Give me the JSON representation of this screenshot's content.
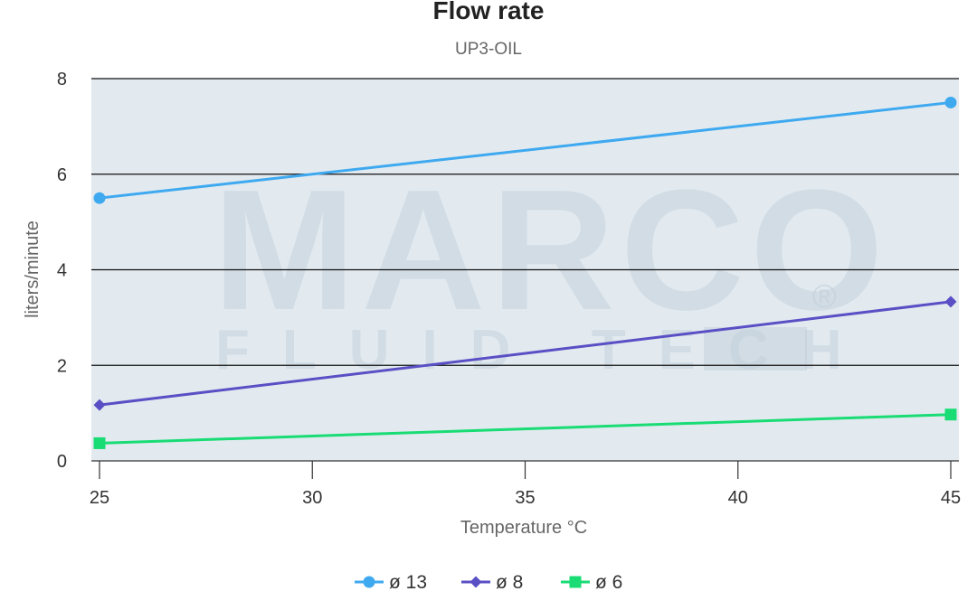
{
  "chart_data": {
    "type": "line",
    "title": "Flow rate",
    "subtitle": "UP3-OIL",
    "xlabel": "Temperature °C",
    "ylabel": "liters/minute",
    "xlim": [
      25,
      45
    ],
    "ylim": [
      0,
      8
    ],
    "x_ticks": [
      "25",
      "30",
      "35",
      "40",
      "45"
    ],
    "y_ticks": [
      "0",
      "2",
      "4",
      "6",
      "8"
    ],
    "grid": true,
    "legend_position": "bottom-center",
    "series": [
      {
        "name": "ø 13",
        "color": "#3fa9f0",
        "marker": "circle",
        "points": [
          [
            25,
            5.5
          ],
          [
            45,
            7.5
          ]
        ]
      },
      {
        "name": "ø 8",
        "color": "#5a4fc4",
        "marker": "diamond",
        "points": [
          [
            25,
            1.17
          ],
          [
            45,
            3.33
          ]
        ]
      },
      {
        "name": "ø 6",
        "color": "#19dc74",
        "marker": "square",
        "points": [
          [
            25,
            0.37
          ],
          [
            45,
            0.97
          ]
        ]
      }
    ]
  },
  "watermark": {
    "main": "MARCO",
    "sub": "FLUID TECH",
    "mark": "®"
  },
  "colors": {
    "plot_background": "#e2eaf0",
    "gridline": "#111111"
  }
}
